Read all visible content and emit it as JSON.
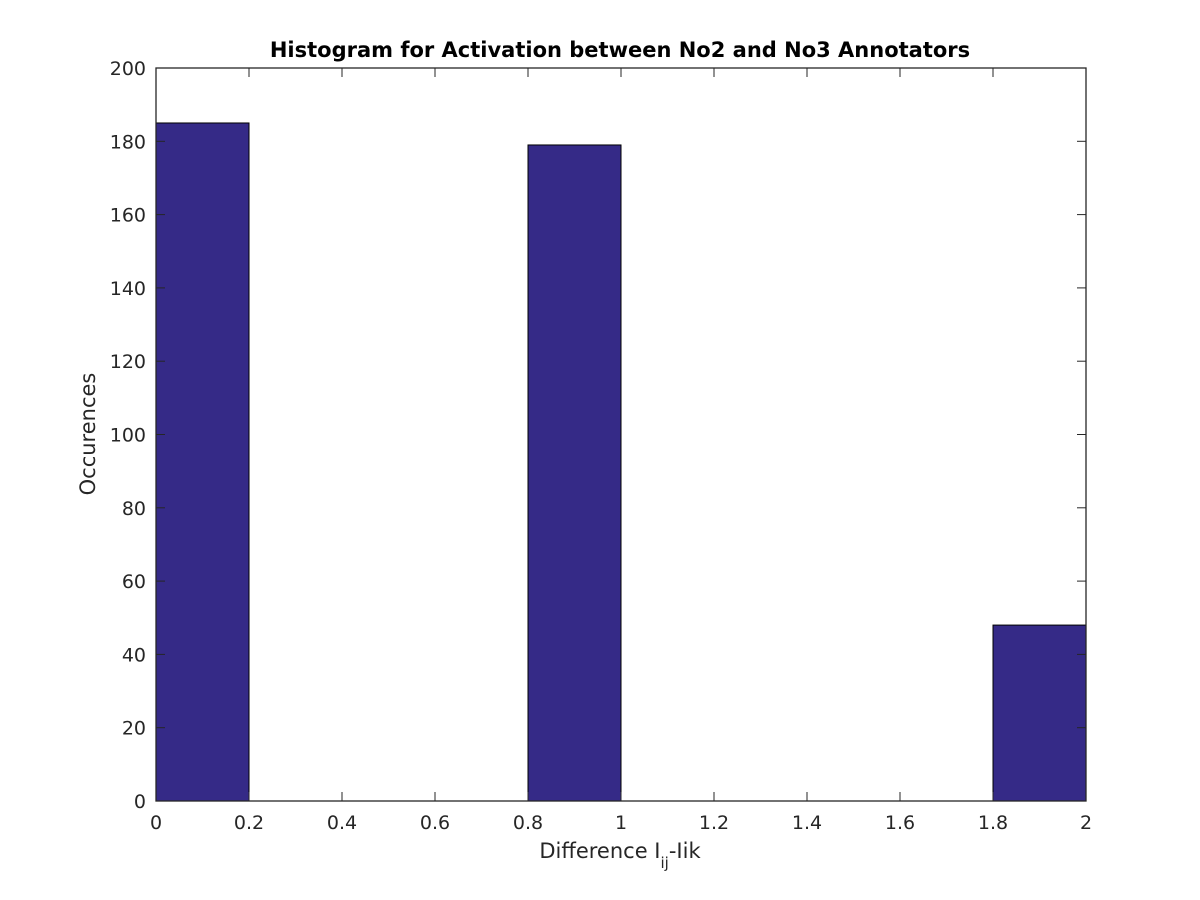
{
  "chart_data": {
    "type": "bar",
    "title": "Histogram for Activation between No2 and No3 Annotators",
    "xlabel": {
      "base": "Difference I",
      "subscript": "ij",
      "suffix": "-Iik"
    },
    "ylabel": "Occurences",
    "xlim": [
      0,
      2
    ],
    "ylim": [
      0,
      200
    ],
    "xticks": [
      "0",
      "0.2",
      "0.4",
      "0.6",
      "0.8",
      "1",
      "1.2",
      "1.4",
      "1.6",
      "1.8",
      "2"
    ],
    "yticks": [
      "0",
      "20",
      "40",
      "60",
      "80",
      "100",
      "120",
      "140",
      "160",
      "180",
      "200"
    ],
    "bins": [
      {
        "x0": 0,
        "x1": 0.2,
        "value": 185
      },
      {
        "x0": 0.8,
        "x1": 1.0,
        "value": 179
      },
      {
        "x0": 1.8,
        "x1": 2.0,
        "value": 48
      }
    ],
    "bar_color": "#352a87",
    "grid": false,
    "box": true
  }
}
